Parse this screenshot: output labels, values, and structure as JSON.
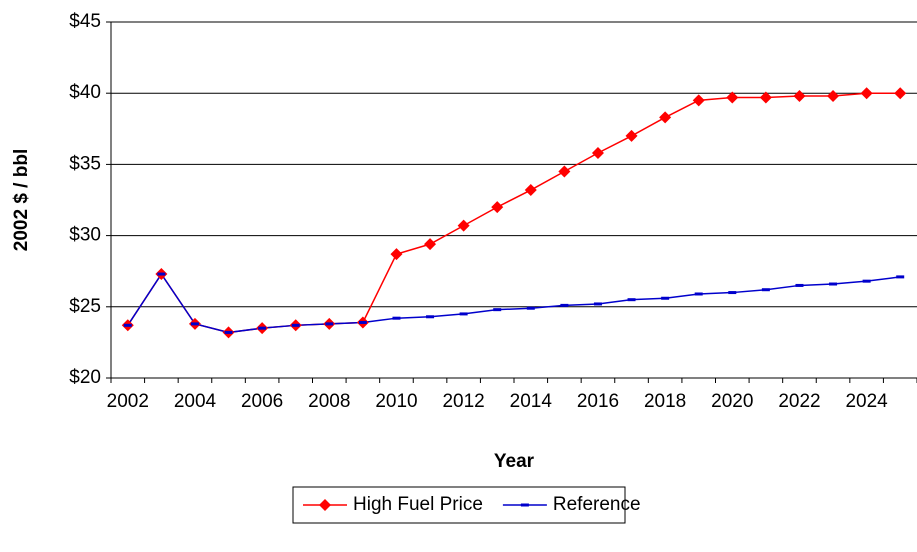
{
  "chart_data": {
    "type": "line",
    "y_label": "2002 $ / bbl",
    "x_label": "Year",
    "categories": [
      "2002",
      null,
      "2004",
      null,
      "2006",
      null,
      "2008",
      null,
      "2010",
      null,
      "2012",
      null,
      "2014",
      null,
      "2016",
      null,
      "2018",
      null,
      "2020",
      null,
      "2022",
      null,
      "2024",
      null
    ],
    "series": [
      {
        "name": "High Fuel Price",
        "color": "#ff0000",
        "marker": "diamond",
        "values": [
          23.7,
          27.3,
          23.8,
          23.2,
          23.5,
          23.7,
          23.8,
          23.9,
          28.7,
          29.4,
          30.7,
          32.0,
          33.2,
          34.5,
          35.8,
          37.0,
          38.3,
          39.5,
          39.7,
          39.7,
          39.8,
          39.8,
          40.0,
          40.0
        ]
      },
      {
        "name": "Reference",
        "color": "#0000cc",
        "marker": "dash",
        "values": [
          23.7,
          27.3,
          23.8,
          23.2,
          23.5,
          23.7,
          23.8,
          23.9,
          24.2,
          24.3,
          24.5,
          24.8,
          24.9,
          25.1,
          25.2,
          25.5,
          25.6,
          25.9,
          26.0,
          26.2,
          26.5,
          26.6,
          26.8,
          27.1
        ]
      }
    ],
    "ylim": [
      20,
      45
    ],
    "yticks": [
      {
        "value": 20,
        "label": "$20"
      },
      {
        "value": 25,
        "label": "$25"
      },
      {
        "value": 30,
        "label": "$30"
      },
      {
        "value": 35,
        "label": "$35"
      },
      {
        "value": 40,
        "label": "$40"
      },
      {
        "value": 45,
        "label": "$45"
      }
    ],
    "grid": true,
    "legend": "bottom"
  }
}
